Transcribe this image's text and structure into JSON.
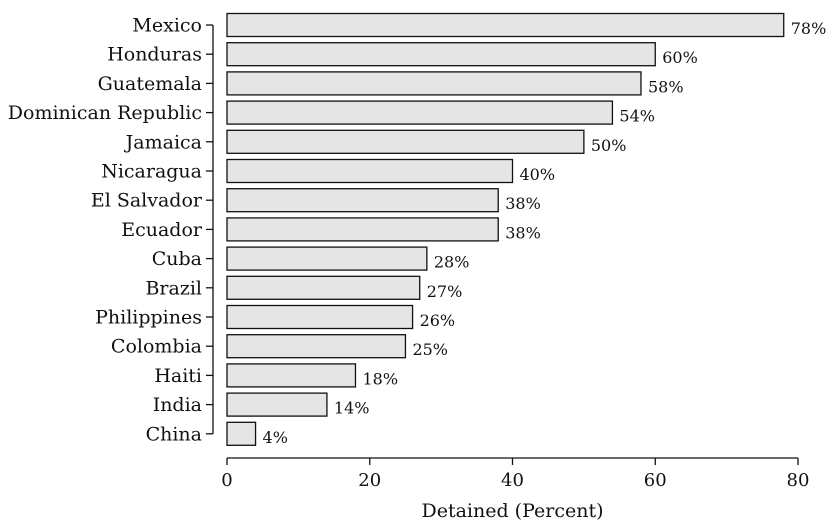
{
  "chart_data": {
    "type": "bar",
    "orientation": "horizontal",
    "title": "",
    "xlabel": "Detained (Percent)",
    "ylabel": "",
    "xlim": [
      0,
      80
    ],
    "xticks": [
      0,
      20,
      40,
      60,
      80
    ],
    "grid": false,
    "bar_color": "#e5e5e5",
    "categories": [
      "Mexico",
      "Honduras",
      "Guatemala",
      "Dominican Republic",
      "Jamaica",
      "Nicaragua",
      "El Salvador",
      "Ecuador",
      "Cuba",
      "Brazil",
      "Philippines",
      "Colombia",
      "Haiti",
      "India",
      "China"
    ],
    "values": [
      78,
      60,
      58,
      54,
      50,
      40,
      38,
      38,
      28,
      27,
      26,
      25,
      18,
      14,
      4
    ],
    "data_labels": [
      "78%",
      "60%",
      "58%",
      "54%",
      "50%",
      "40%",
      "38%",
      "38%",
      "28%",
      "27%",
      "26%",
      "25%",
      "18%",
      "14%",
      "4%"
    ]
  }
}
